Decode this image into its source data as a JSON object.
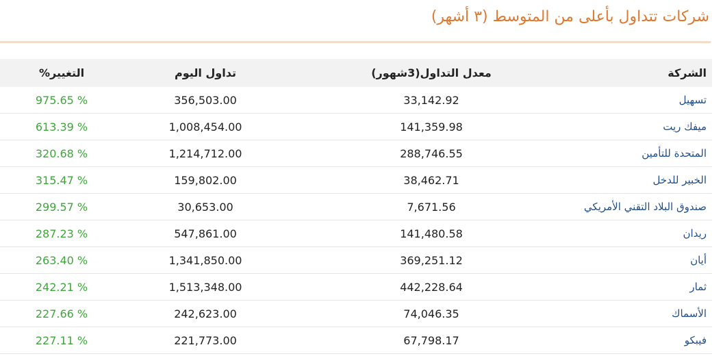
{
  "title": "شركات تتداول بأعلى من المتوسط (٣ أشهر)",
  "table": {
    "headers": {
      "company": "الشركة",
      "avg_volume": "معدل التداول(3شهور)",
      "today_volume": "تداول اليوم",
      "change": "التغيير%"
    },
    "rows": [
      {
        "company": "تسهيل",
        "avg": "33,142.92",
        "today": "356,503.00",
        "change": "975.65 %"
      },
      {
        "company": "ميفك ريت",
        "avg": "141,359.98",
        "today": "1,008,454.00",
        "change": "613.39 %"
      },
      {
        "company": "المتحدة للتأمين",
        "avg": "288,746.55",
        "today": "1,214,712.00",
        "change": "320.68 %"
      },
      {
        "company": "الخبير للدخل",
        "avg": "38,462.71",
        "today": "159,802.00",
        "change": "315.47 %"
      },
      {
        "company": "صندوق البلاد التقني الأمريكي",
        "avg": "7,671.56",
        "today": "30,653.00",
        "change": "299.57 %"
      },
      {
        "company": "ريدان",
        "avg": "141,480.58",
        "today": "547,861.00",
        "change": "287.23 %"
      },
      {
        "company": "أيان",
        "avg": "369,251.12",
        "today": "1,341,850.00",
        "change": "263.40 %"
      },
      {
        "company": "ثمار",
        "avg": "442,228.64",
        "today": "1,513,348.00",
        "change": "242.21 %"
      },
      {
        "company": "الأسماك",
        "avg": "74,046.35",
        "today": "242,623.00",
        "change": "227.66 %"
      },
      {
        "company": "فيبكو",
        "avg": "67,798.17",
        "today": "221,773.00",
        "change": "227.11 %"
      }
    ]
  },
  "colors": {
    "title": "#e0782f",
    "rule": "#f6dcc6",
    "header_bg": "#f2f2f2",
    "company_link": "#1f4e8c",
    "positive_change": "#3ea63a"
  }
}
